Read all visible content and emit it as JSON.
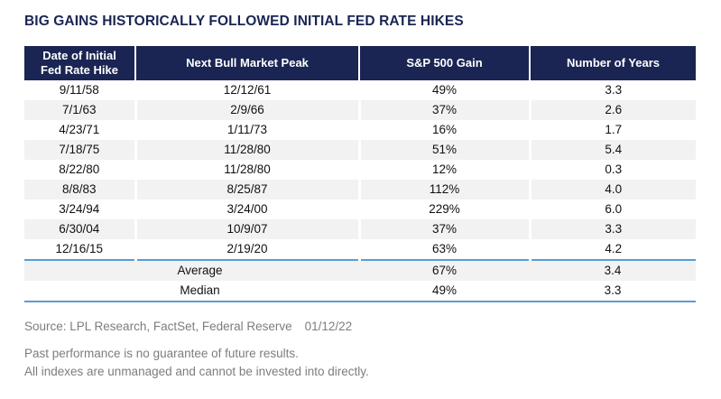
{
  "title": "BIG GAINS HISTORICALLY FOLLOWED INITIAL FED RATE HIKES",
  "chart_data": {
    "type": "table",
    "title": "BIG GAINS HISTORICALLY FOLLOWED INITIAL FED RATE HIKES",
    "columns": [
      "Date of Initial Fed Rate Hike",
      "Next Bull Market Peak",
      "S&P 500 Gain",
      "Number of Years"
    ],
    "rows": [
      [
        "9/11/58",
        "12/12/61",
        "49%",
        "3.3"
      ],
      [
        "7/1/63",
        "2/9/66",
        "37%",
        "2.6"
      ],
      [
        "4/23/71",
        "1/11/73",
        "16%",
        "1.7"
      ],
      [
        "7/18/75",
        "11/28/80",
        "51%",
        "5.4"
      ],
      [
        "8/22/80",
        "11/28/80",
        "12%",
        "0.3"
      ],
      [
        "8/8/83",
        "8/25/87",
        "112%",
        "4.0"
      ],
      [
        "3/24/94",
        "3/24/00",
        "229%",
        "6.0"
      ],
      [
        "6/30/04",
        "10/9/07",
        "37%",
        "3.3"
      ],
      [
        "12/16/15",
        "2/19/20",
        "63%",
        "4.2"
      ]
    ],
    "summary": [
      {
        "label": "Average",
        "sp500_gain": "67%",
        "number_of_years": "3.4"
      },
      {
        "label": "Median",
        "sp500_gain": "49%",
        "number_of_years": "3.3"
      }
    ]
  },
  "footer": {
    "source": "Source: LPL Research, FactSet, Federal Reserve",
    "date": "01/12/22",
    "disclaimers": [
      "Past performance is no guarantee of future results.",
      "All indexes are unmanaged and cannot be invested into directly."
    ]
  },
  "colors": {
    "navy": "#1a2553",
    "accent_blue": "#5b9bd5",
    "row_alt": "#f2f2f3",
    "footer_gray": "#7d7d7d"
  }
}
